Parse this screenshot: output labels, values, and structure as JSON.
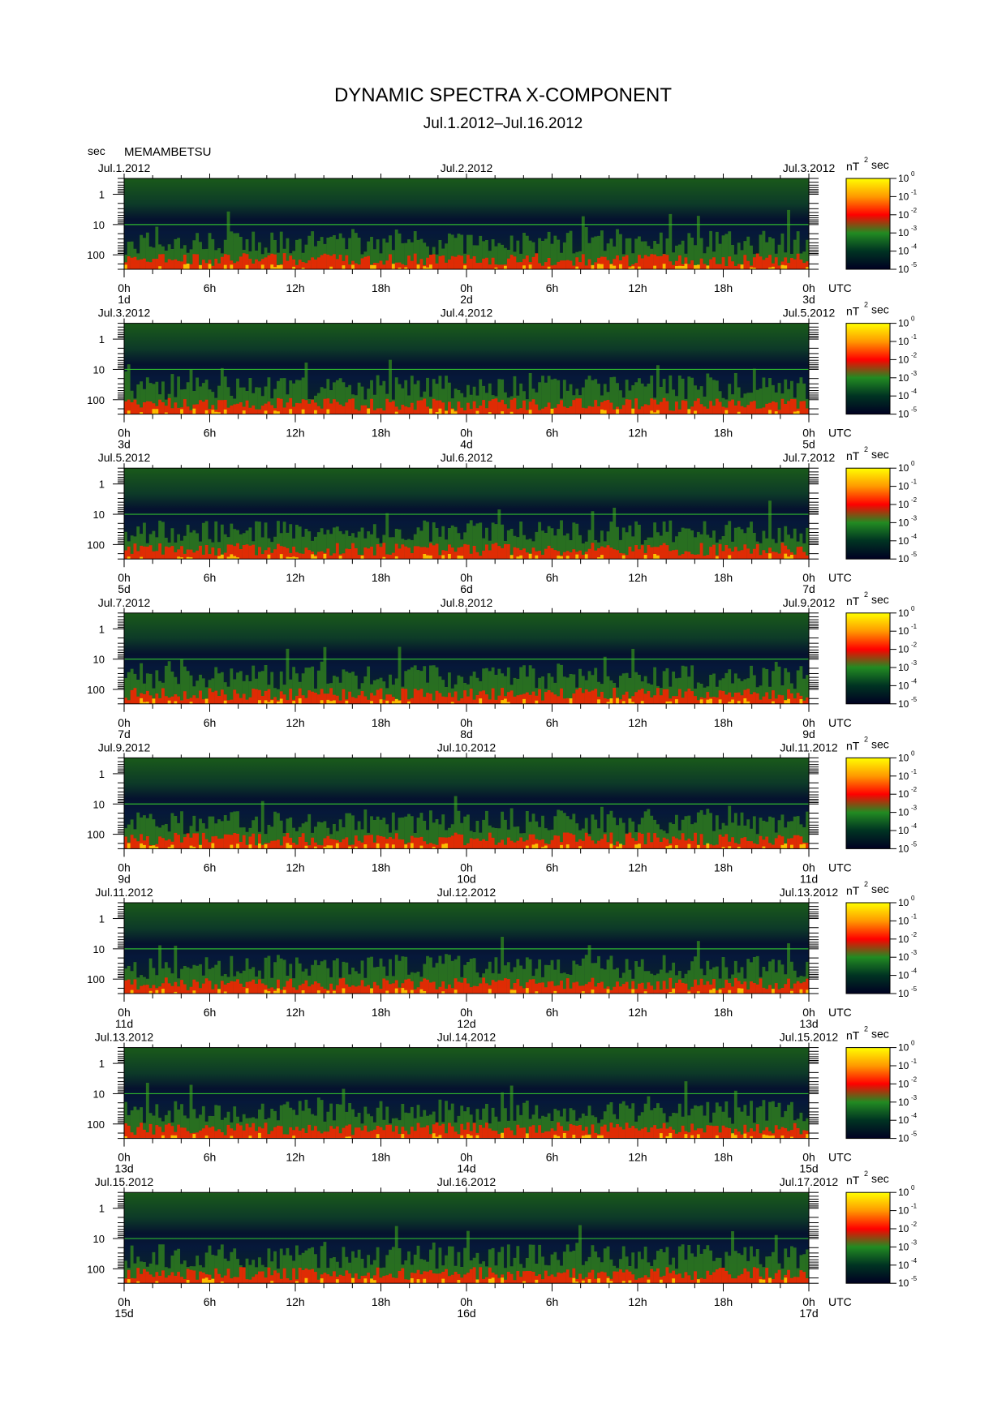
{
  "title": "DYNAMIC SPECTRA X-COMPONENT",
  "subtitle": "Jul.1.2012–Jul.16.2012",
  "station": "MEMAMBETSU",
  "y_unit": "sec",
  "colorbar_unit": "nT",
  "colorbar_unit_sup": "2",
  "colorbar_unit_suffix": "sec",
  "time_zone_label": "UTC",
  "colorbar_ticks": [
    {
      "base": "10",
      "exp": "0"
    },
    {
      "base": "10",
      "exp": "-1"
    },
    {
      "base": "10",
      "exp": "-2"
    },
    {
      "base": "10",
      "exp": "-3"
    },
    {
      "base": "10",
      "exp": "-4"
    },
    {
      "base": "10",
      "exp": "-5"
    }
  ],
  "colors": {
    "colorbar_stops": [
      "#ffff00",
      "#ff9900",
      "#ff0000",
      "#228b22",
      "#003322",
      "#000022"
    ],
    "bg_high_period": "#1a5a1a",
    "bg_mid": "#05122e",
    "hot": "#ff2000"
  },
  "chart_data": {
    "type": "heatmap",
    "y_axis": {
      "label": "sec",
      "scale": "log",
      "ticks": [
        "1",
        "10",
        "100"
      ],
      "range_sec": [
        0.3,
        300
      ]
    },
    "x_ticks": [
      "0h",
      "6h",
      "12h",
      "18h",
      "0h",
      "6h",
      "12h",
      "18h",
      "0h"
    ],
    "colorbar": {
      "label": "nT² sec",
      "scale": "log",
      "range": [
        1e-05,
        1
      ]
    },
    "panels": [
      {
        "date_start": "Jul.1.2012",
        "date_mid": "Jul.2.2012",
        "date_end": "Jul.3.2012",
        "day_start": "1d",
        "day_mid": "2d",
        "day_end": "3d"
      },
      {
        "date_start": "Jul.3.2012",
        "date_mid": "Jul.4.2012",
        "date_end": "Jul.5.2012",
        "day_start": "3d",
        "day_mid": "4d",
        "day_end": "5d"
      },
      {
        "date_start": "Jul.5.2012",
        "date_mid": "Jul.6.2012",
        "date_end": "Jul.7.2012",
        "day_start": "5d",
        "day_mid": "6d",
        "day_end": "7d"
      },
      {
        "date_start": "Jul.7.2012",
        "date_mid": "Jul.8.2012",
        "date_end": "Jul.9.2012",
        "day_start": "7d",
        "day_mid": "8d",
        "day_end": "9d"
      },
      {
        "date_start": "Jul.9.2012",
        "date_mid": "Jul.10.2012",
        "date_end": "Jul.11.2012",
        "day_start": "9d",
        "day_mid": "10d",
        "day_end": "11d"
      },
      {
        "date_start": "Jul.11.2012",
        "date_mid": "Jul.12.2012",
        "date_end": "Jul.13.2012",
        "day_start": "11d",
        "day_mid": "12d",
        "day_end": "13d"
      },
      {
        "date_start": "Jul.13.2012",
        "date_mid": "Jul.14.2012",
        "date_end": "Jul.15.2012",
        "day_start": "13d",
        "day_mid": "14d",
        "day_end": "15d"
      },
      {
        "date_start": "Jul.15.2012",
        "date_mid": "Jul.16.2012",
        "date_end": "Jul.17.2012",
        "day_start": "15d",
        "day_mid": "16d",
        "day_end": "17d"
      }
    ]
  }
}
